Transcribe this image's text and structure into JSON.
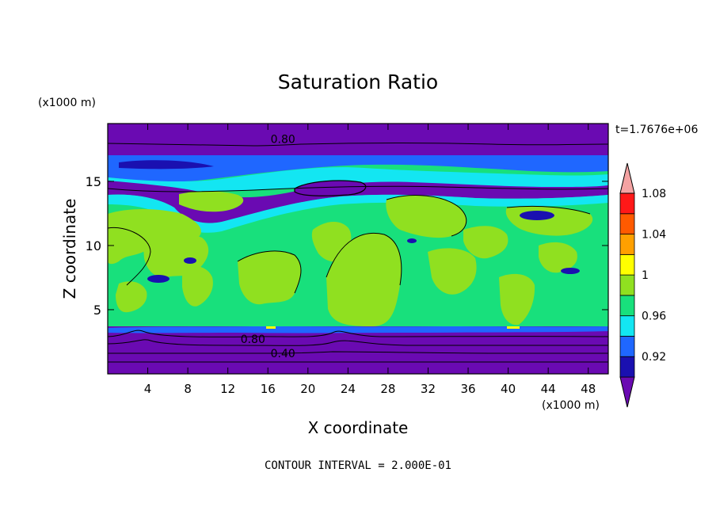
{
  "chart_data": {
    "type": "heatmap",
    "title": "Saturation Ratio",
    "xlabel": "X coordinate",
    "ylabel": "Z coordinate",
    "x_unit": "(x1000 m)",
    "y_unit": "(x1000 m)",
    "xlim": [
      0,
      50
    ],
    "ylim": [
      0,
      19.5
    ],
    "x_ticks": [
      4,
      8,
      12,
      16,
      20,
      24,
      28,
      32,
      36,
      40,
      44,
      48
    ],
    "x_tick_labels": [
      "4",
      "8",
      "12",
      "16",
      "20",
      "24",
      "28",
      "32",
      "36",
      "40",
      "44",
      "48"
    ],
    "y_ticks": [
      5,
      10,
      15
    ],
    "y_tick_labels": [
      "5",
      "10",
      "15"
    ],
    "time_label": "t=1.7676e+06",
    "footer": "CONTOUR INTERVAL = 2.000E-01",
    "contour_labels": [
      {
        "text": "0.80",
        "x": 17.5,
        "y": 18.3
      },
      {
        "text": "0.80",
        "x": 14.5,
        "y": 2.7
      },
      {
        "text": "0.40",
        "x": 17.5,
        "y": 1.6
      }
    ],
    "colorbar": {
      "levels": [
        0.92,
        0.96,
        1,
        1.04,
        1.08
      ],
      "level_labels": [
        "0.92",
        "0.96",
        "1",
        "1.04",
        "1.08"
      ],
      "colors": [
        "#6a0ab2",
        "#1a10b0",
        "#1f67ff",
        "#13e6f2",
        "#18e07c",
        "#90e020",
        "#ffff00",
        "#ffa000",
        "#ff5a00",
        "#ff1818",
        "#f4a3a3"
      ]
    },
    "bands": [
      {
        "z0": 0,
        "z1": 3.0,
        "level": "below 0.88"
      },
      {
        "z0": 3.0,
        "z1": 3.6,
        "level": "below 0.88"
      },
      {
        "z0": 3.6,
        "z1": 15.0,
        "level": "0.96-1.04"
      },
      {
        "z0": 15.0,
        "z1": 17.8,
        "level": "0.88-1.00"
      },
      {
        "z0": 17.8,
        "z1": 19.5,
        "level": "below 0.88"
      }
    ]
  }
}
